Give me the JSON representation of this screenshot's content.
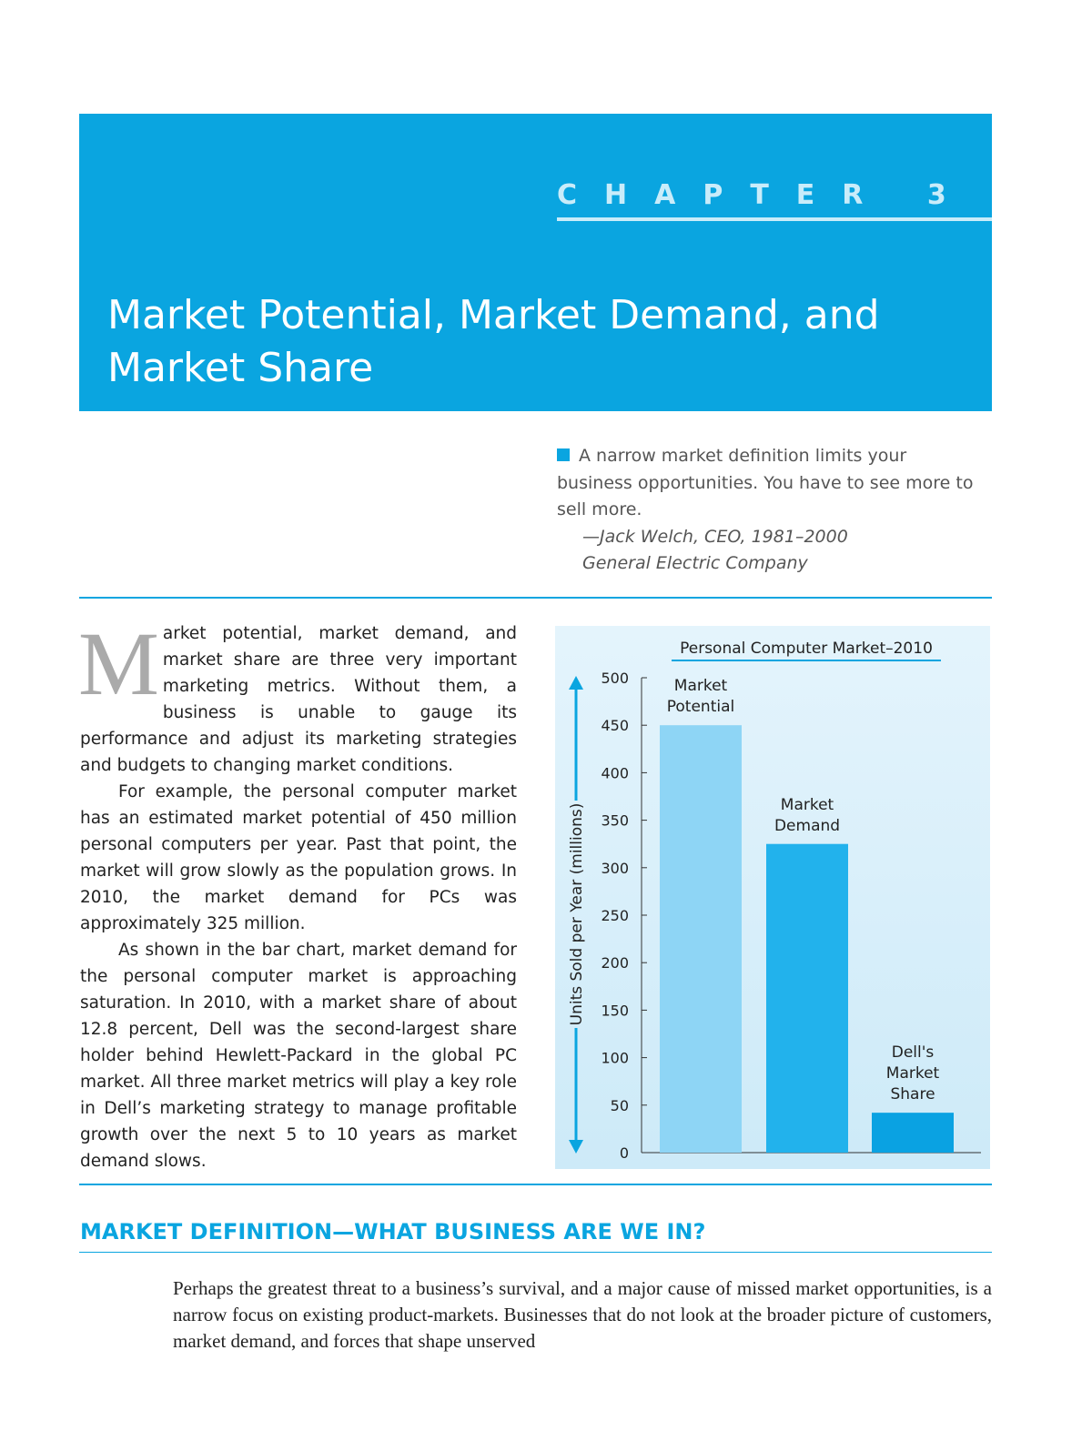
{
  "header": {
    "chapter": "CHAPTER 3",
    "title": "Market Potential, Market Demand, and Market Share"
  },
  "quote": {
    "text": "A narrow market definition limits your business opportunities. You have to see more to sell more.",
    "attribution": "—Jack Welch, CEO, 1981–2000",
    "organization": "General Electric Company"
  },
  "body": {
    "drop_cap": "M",
    "paragraphs": [
      "arket potential, market demand, and market share are three very important marketing metrics. Without them, a business is unable to gauge its performance and adjust its marketing strategies and budgets to changing market conditions.",
      "For example, the personal computer market has an estimated market potential of 450 million personal computers per year. Past that point, the market will grow slowly as the population grows. In 2010, the market demand for PCs was approximately 325 million.",
      "As shown in the bar chart, market demand for the personal computer market is approaching saturation. In 2010, with a market share of about 12.8 percent, Dell was the second-largest share holder behind Hewlett-Packard in the global PC market. All three market metrics will play a key role in Dell’s marketing strategy to manage profitable growth over the next 5 to 10 years as market demand slows."
    ]
  },
  "chart_data": {
    "type": "bar",
    "title": "Personal Computer Market–2010",
    "y_label": "Units Sold per Year (millions)",
    "categories": [
      "Market Potential",
      "Market Demand",
      "Dell's Market Share"
    ],
    "values": [
      450,
      325,
      42
    ],
    "colors": [
      "#8ed5f5",
      "#22b2ec",
      "#0aa2e2"
    ],
    "ylim": [
      0,
      500
    ],
    "yticks": [
      0,
      50,
      100,
      150,
      200,
      250,
      300,
      350,
      400,
      450,
      500
    ]
  },
  "section": {
    "heading": "MARKET DEFINITION—WHAT BUSINESS ARE WE IN?",
    "paragraphs": [
      "Perhaps the greatest threat to a business’s survival, and a major cause of missed market opportunities, is a narrow focus on existing product-markets. Businesses that do not look at the broader picture of customers, market demand, and forces that shape unserved"
    ]
  }
}
